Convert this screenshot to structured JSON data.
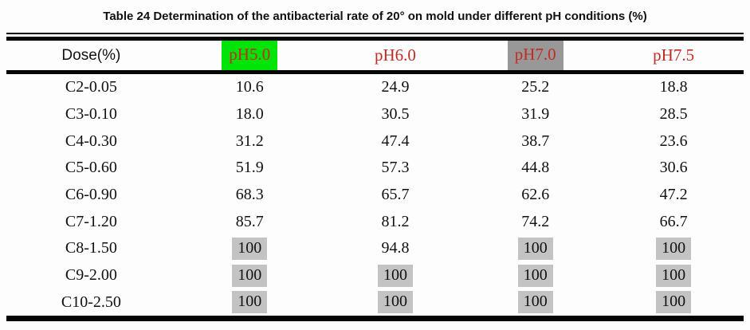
{
  "title": "Table 24 Determination of the antibacterial rate of 20° on mold under different pH conditions (%)",
  "colors": {
    "header_text": "#c32b22",
    "green_highlight": "#00e409",
    "gray_header_highlight": "#989898",
    "gray_cell_highlight": "#c3c3c3",
    "rule": "#050505"
  },
  "table": {
    "columns": [
      {
        "label": "Dose(%)",
        "highlight": "none"
      },
      {
        "label": "pH5.0",
        "highlight": "green"
      },
      {
        "label": "pH6.0",
        "highlight": "none"
      },
      {
        "label": "pH7.0",
        "highlight": "gray"
      },
      {
        "label": "pH7.5",
        "highlight": "none"
      }
    ],
    "rows": [
      {
        "dose": "C2-0.05",
        "values": [
          {
            "v": "10.6",
            "hl": false
          },
          {
            "v": "24.9",
            "hl": false
          },
          {
            "v": "25.2",
            "hl": false
          },
          {
            "v": "18.8",
            "hl": false
          }
        ]
      },
      {
        "dose": "C3-0.10",
        "values": [
          {
            "v": "18.0",
            "hl": false
          },
          {
            "v": "30.5",
            "hl": false
          },
          {
            "v": "31.9",
            "hl": false
          },
          {
            "v": "28.5",
            "hl": false
          }
        ]
      },
      {
        "dose": "C4-0.30",
        "values": [
          {
            "v": "31.2",
            "hl": false
          },
          {
            "v": "47.4",
            "hl": false
          },
          {
            "v": "38.7",
            "hl": false
          },
          {
            "v": "23.6",
            "hl": false
          }
        ]
      },
      {
        "dose": "C5-0.60",
        "values": [
          {
            "v": "51.9",
            "hl": false
          },
          {
            "v": "57.3",
            "hl": false
          },
          {
            "v": "44.8",
            "hl": false
          },
          {
            "v": "30.6",
            "hl": false
          }
        ]
      },
      {
        "dose": "C6-0.90",
        "values": [
          {
            "v": "68.3",
            "hl": false
          },
          {
            "v": "65.7",
            "hl": false
          },
          {
            "v": "62.6",
            "hl": false
          },
          {
            "v": "47.2",
            "hl": false
          }
        ]
      },
      {
        "dose": "C7-1.20",
        "values": [
          {
            "v": "85.7",
            "hl": false
          },
          {
            "v": "81.2",
            "hl": false
          },
          {
            "v": "74.2",
            "hl": false
          },
          {
            "v": "66.7",
            "hl": false
          }
        ]
      },
      {
        "dose": "C8-1.50",
        "values": [
          {
            "v": "100",
            "hl": true
          },
          {
            "v": "94.8",
            "hl": false
          },
          {
            "v": "100",
            "hl": true
          },
          {
            "v": "100",
            "hl": true
          }
        ]
      },
      {
        "dose": "C9-2.00",
        "values": [
          {
            "v": "100",
            "hl": true
          },
          {
            "v": "100",
            "hl": true
          },
          {
            "v": "100",
            "hl": true
          },
          {
            "v": "100",
            "hl": true
          }
        ]
      },
      {
        "dose": "C10-2.50",
        "values": [
          {
            "v": "100",
            "hl": true
          },
          {
            "v": "100",
            "hl": true
          },
          {
            "v": "100",
            "hl": true
          },
          {
            "v": "100",
            "hl": true
          }
        ]
      }
    ]
  }
}
